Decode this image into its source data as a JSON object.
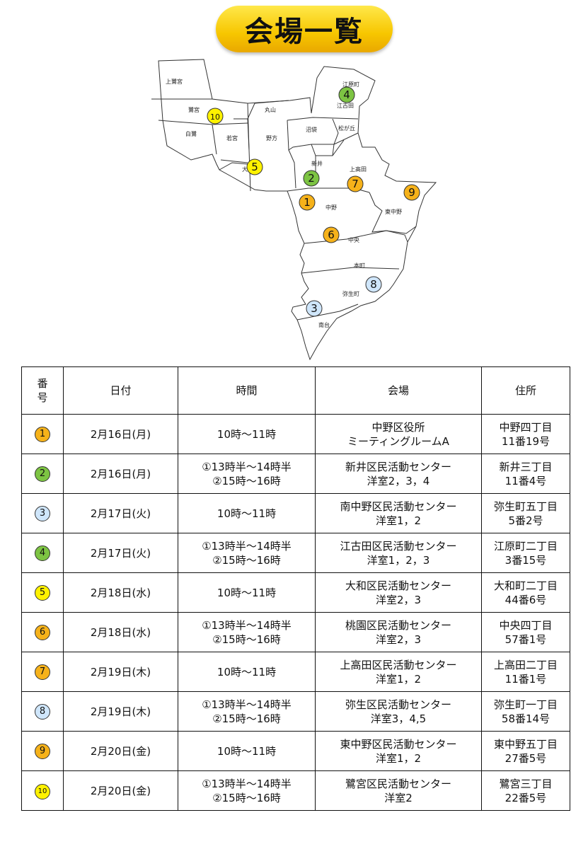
{
  "title": "会場一覧",
  "colors": {
    "orange": "#f6b21a",
    "green": "#7dc443",
    "lightblue": "#cfe6fb",
    "yellow": "#fff200"
  },
  "map": {
    "ward_labels": [
      "上鷺宮",
      "鷺宮",
      "白鷺",
      "若宮",
      "野方",
      "丸山",
      "大和",
      "江原町",
      "江古田",
      "沼袋",
      "松が丘",
      "新井",
      "上高田",
      "中野",
      "東中野",
      "中央",
      "本町",
      "弥生町",
      "南台"
    ],
    "markers": [
      {
        "num": "1",
        "color": "orange"
      },
      {
        "num": "2",
        "color": "green"
      },
      {
        "num": "3",
        "color": "lightblue"
      },
      {
        "num": "4",
        "color": "green"
      },
      {
        "num": "5",
        "color": "yellow"
      },
      {
        "num": "6",
        "color": "orange"
      },
      {
        "num": "7",
        "color": "orange"
      },
      {
        "num": "8",
        "color": "lightblue"
      },
      {
        "num": "9",
        "color": "orange"
      },
      {
        "num": "10",
        "color": "yellow"
      }
    ]
  },
  "table": {
    "headers": {
      "num": [
        "番",
        "号"
      ],
      "date": "日付",
      "time": "時間",
      "venue": "会場",
      "address": "住所"
    },
    "rows": [
      {
        "num": "1",
        "color": "orange",
        "date": "2月16日(月)",
        "time": [
          "10時～11時"
        ],
        "venue": [
          "中野区役所",
          "ミーティングルームA"
        ],
        "address": [
          "中野四丁目",
          "11番19号"
        ]
      },
      {
        "num": "2",
        "color": "green",
        "date": "2月16日(月)",
        "time": [
          "①13時半～14時半",
          "②15時～16時"
        ],
        "venue": [
          "新井区民活動センター",
          "洋室2，3，4"
        ],
        "address": [
          "新井三丁目",
          "11番4号"
        ]
      },
      {
        "num": "3",
        "color": "lightblue",
        "date": "2月17日(火)",
        "time": [
          "10時～11時"
        ],
        "venue": [
          "南中野区民活動センター",
          "洋室1，2"
        ],
        "address": [
          "弥生町五丁目",
          "5番2号"
        ]
      },
      {
        "num": "4",
        "color": "green",
        "date": "2月17日(火)",
        "time": [
          "①13時半～14時半",
          "②15時～16時"
        ],
        "venue": [
          "江古田区民活動センター",
          "洋室1，2，3"
        ],
        "address": [
          "江原町二丁目",
          "3番15号"
        ]
      },
      {
        "num": "5",
        "color": "yellow",
        "date": "2月18日(水)",
        "time": [
          "10時～11時"
        ],
        "venue": [
          "大和区民活動センター",
          "洋室2，3"
        ],
        "address": [
          "大和町二丁目",
          "44番6号"
        ]
      },
      {
        "num": "6",
        "color": "orange",
        "date": "2月18日(水)",
        "time": [
          "①13時半～14時半",
          "②15時～16時"
        ],
        "venue": [
          "桃園区民活動センター",
          "洋室2，3"
        ],
        "address": [
          "中央四丁目",
          "57番1号"
        ]
      },
      {
        "num": "7",
        "color": "orange",
        "date": "2月19日(木)",
        "time": [
          "10時～11時"
        ],
        "venue": [
          "上高田区民活動センター",
          "洋室1，2"
        ],
        "address": [
          "上高田二丁目",
          "11番1号"
        ]
      },
      {
        "num": "8",
        "color": "lightblue",
        "date": "2月19日(木)",
        "time": [
          "①13時半～14時半",
          "②15時～16時"
        ],
        "venue": [
          "弥生区民活動センター",
          "洋室3，4,5"
        ],
        "address": [
          "弥生町一丁目",
          "58番14号"
        ]
      },
      {
        "num": "9",
        "color": "orange",
        "date": "2月20日(金)",
        "time": [
          "10時～11時"
        ],
        "venue": [
          "東中野区民活動センター",
          "洋室1，2"
        ],
        "address": [
          "東中野五丁目",
          "27番5号"
        ]
      },
      {
        "num": "10",
        "color": "yellow",
        "date": "2月20日(金)",
        "time": [
          "①13時半～14時半",
          "②15時～16時"
        ],
        "venue": [
          "鷺宮区民活動センター",
          "洋室2"
        ],
        "address": [
          "鷺宮三丁目",
          "22番5号"
        ]
      }
    ]
  }
}
